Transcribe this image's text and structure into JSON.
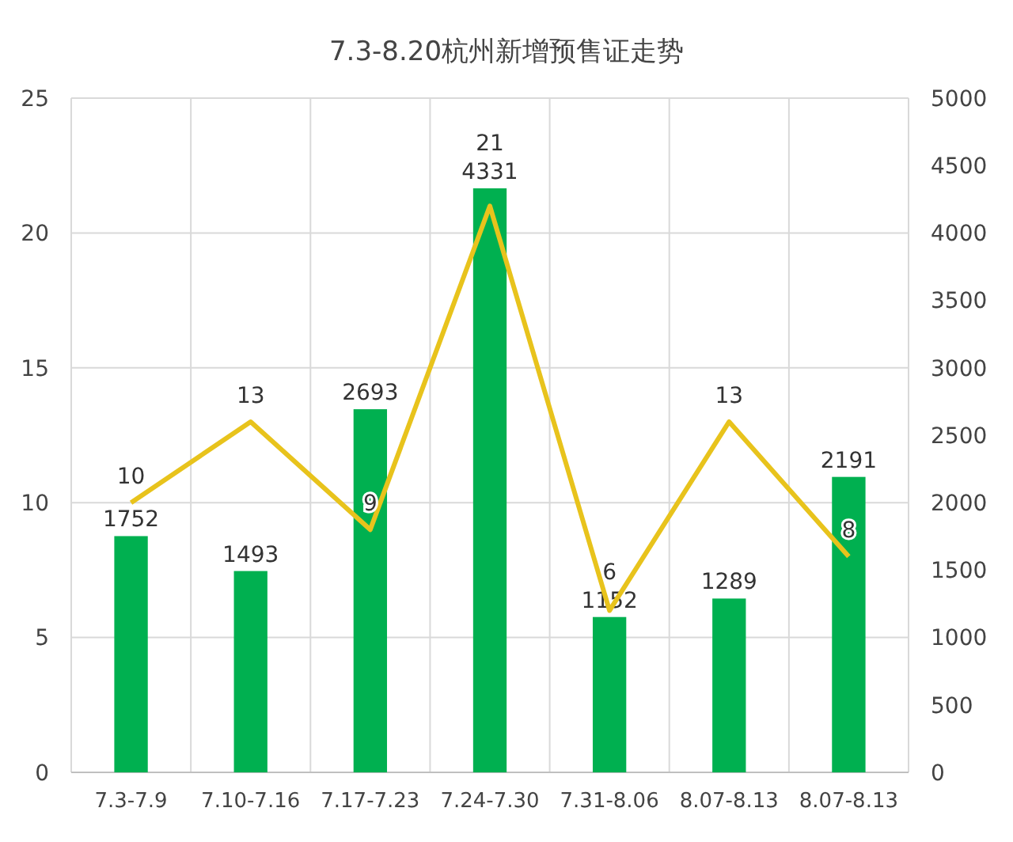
{
  "chart_data": {
    "type": "bar",
    "title": "7.3-8.20杭州新增预售证走势",
    "categories": [
      "7.3-7.9",
      "7.10-7.16",
      "7.17-7.23",
      "7.24-7.30",
      "7.31-8.06",
      "8.07-8.13",
      "8.07-8.13"
    ],
    "series": [
      {
        "axis": "y2",
        "color": "#00b050",
        "values": [
          1752,
          1493,
          2693,
          4331,
          1152,
          1289,
          2191
        ]
      },
      {
        "type": "line",
        "color": "#e8c31c",
        "values": [
          10,
          13,
          9,
          21,
          6,
          13,
          8
        ]
      }
    ],
    "ylim": [
      0,
      25
    ],
    "yticks": [
      0,
      5,
      10,
      15,
      20,
      25
    ],
    "y2lim": [
      0,
      5000
    ],
    "y2ticks": [
      0,
      500,
      1000,
      1500,
      2000,
      2500,
      3000,
      3500,
      4000,
      4500,
      5000
    ],
    "grid": true,
    "data_labels": true,
    "marker": "none",
    "line_style": "solid"
  }
}
